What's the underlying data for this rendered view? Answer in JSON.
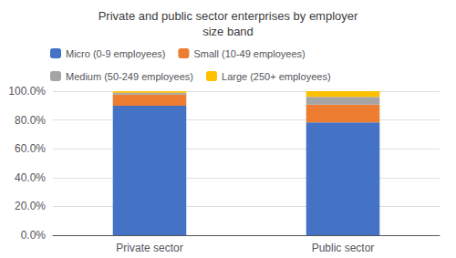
{
  "chart_data": {
    "type": "bar",
    "stacked": true,
    "title": "Private and public sector enterprises by employer\nsize band",
    "categories": [
      "Private sector",
      "Public sector"
    ],
    "series": [
      {
        "name": "Micro (0-9 employees)",
        "color": "#4472C4",
        "values": [
          89.9,
          78.4
        ]
      },
      {
        "name": "Small (10-49 employees)",
        "color": "#ED7D31",
        "values": [
          7.7,
          12.2
        ]
      },
      {
        "name": "Medium (50-249 employees)",
        "color": "#A5A5A5",
        "values": [
          1.3,
          5.5
        ]
      },
      {
        "name": "Large (250+ employees)",
        "color": "#FFC000",
        "values": [
          1.1,
          3.9
        ]
      }
    ],
    "ylim": [
      0,
      100
    ],
    "yticks": [
      {
        "value": 0,
        "label": "0.0%"
      },
      {
        "value": 20,
        "label": "20.0%"
      },
      {
        "value": 40,
        "label": "40.0%"
      },
      {
        "value": 60,
        "label": "60.0%"
      },
      {
        "value": 80,
        "label": "80.0%"
      },
      {
        "value": 100,
        "label": "100.0%"
      }
    ],
    "grid": true,
    "legend": "upper left"
  }
}
